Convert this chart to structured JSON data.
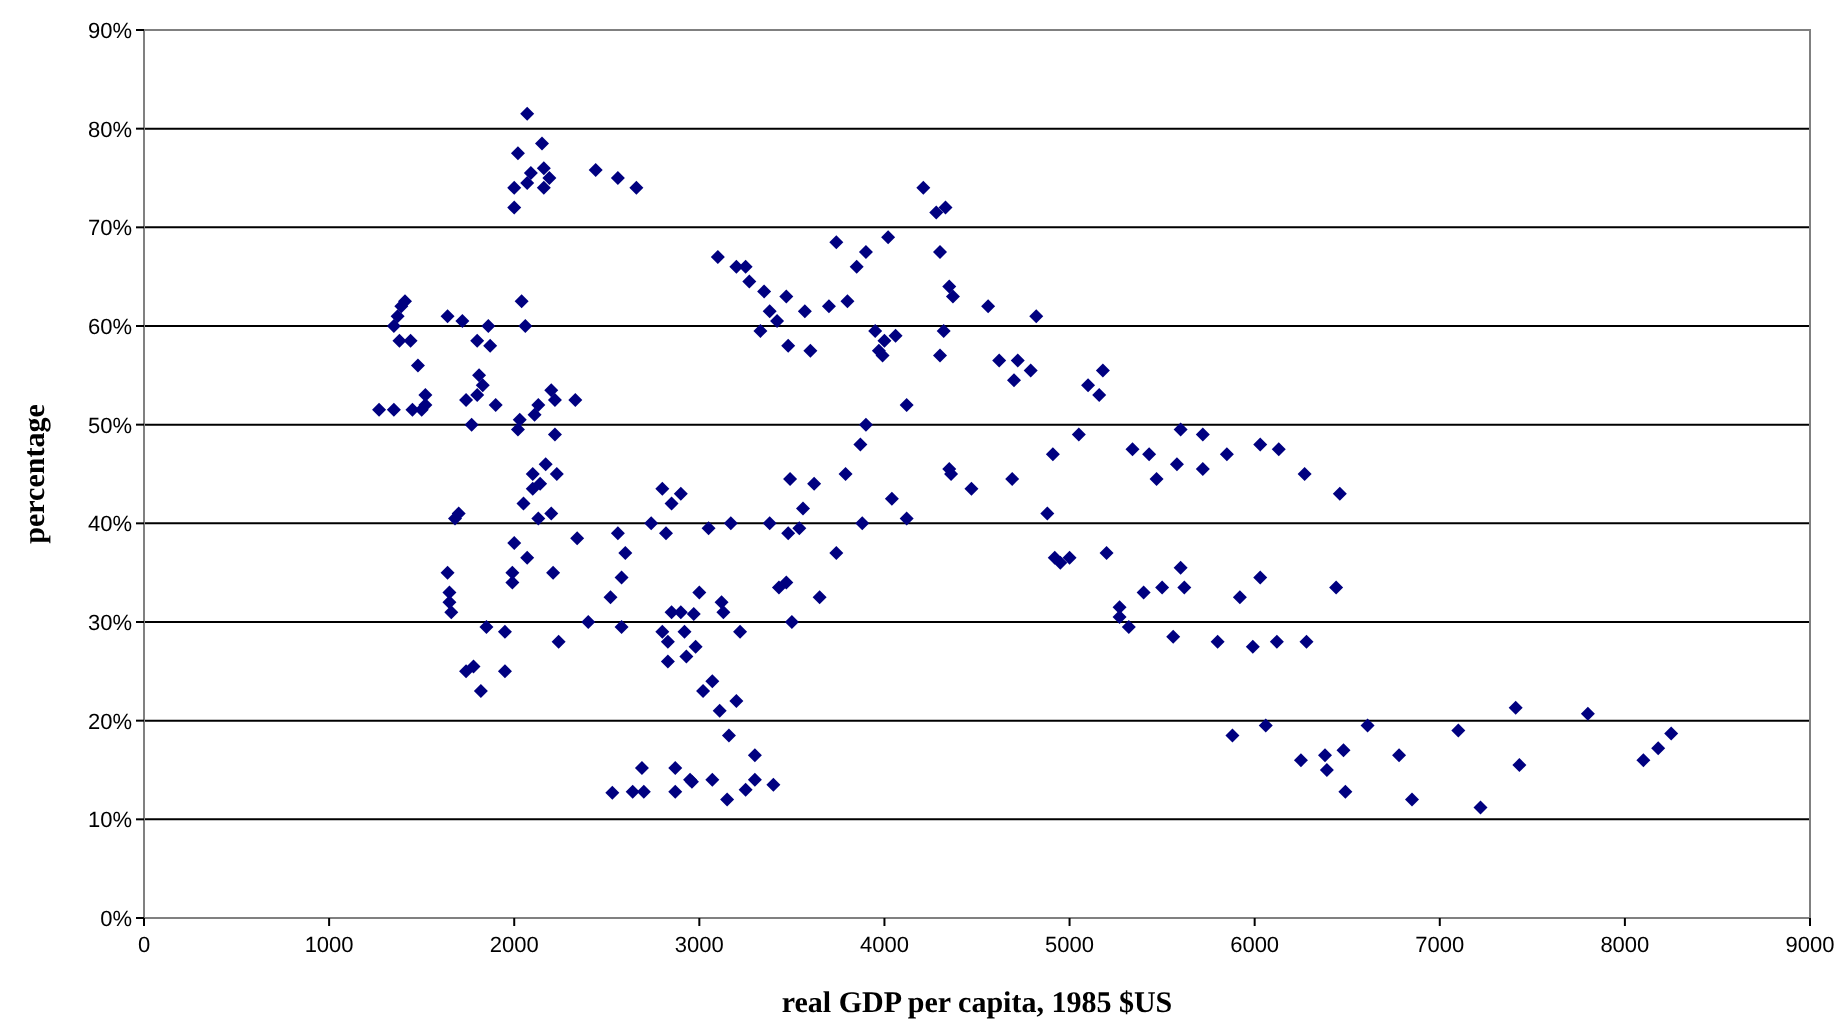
{
  "chart_data": {
    "type": "scatter",
    "xlabel": "real GDP per capita, 1985 $US",
    "ylabel": "percentage",
    "marker": "diamond",
    "grid": "y",
    "xlim": [
      0,
      9000
    ],
    "xticks": [
      0,
      1000,
      2000,
      3000,
      4000,
      5000,
      6000,
      7000,
      8000,
      9000
    ],
    "ylim": [
      0,
      90
    ],
    "yticks": [
      {
        "value": 0,
        "label": "0%"
      },
      {
        "value": 10,
        "label": "10%"
      },
      {
        "value": 20,
        "label": "20%"
      },
      {
        "value": 30,
        "label": "30%"
      },
      {
        "value": 40,
        "label": "40%"
      },
      {
        "value": 50,
        "label": "50%"
      },
      {
        "value": 60,
        "label": "60%"
      },
      {
        "value": 70,
        "label": "70%"
      },
      {
        "value": 80,
        "label": "80%"
      },
      {
        "value": 90,
        "label": "90%"
      }
    ],
    "series": [
      {
        "color": "#000080",
        "x": [
          1270,
          1350,
          1350,
          1370,
          1390,
          1410,
          1380,
          1440,
          1450,
          1500,
          1480,
          1520,
          1520,
          1640,
          1640,
          1650,
          1650,
          1660,
          1680,
          1700,
          1720,
          1740,
          1740,
          1780,
          1770,
          1800,
          1800,
          1810,
          1830,
          1820,
          1850,
          1860,
          1870,
          1900,
          1950,
          1950,
          1990,
          1990,
          2000,
          2000,
          2000,
          2020,
          2020,
          2030,
          2040,
          2050,
          2060,
          2070,
          2070,
          2090,
          2070,
          2100,
          2100,
          2110,
          2130,
          2130,
          2140,
          2150,
          2160,
          2160,
          2170,
          2190,
          2200,
          2210,
          2200,
          2220,
          2230,
          2240,
          2220,
          2330,
          2340,
          2400,
          2440,
          2520,
          2530,
          2560,
          2560,
          2580,
          2580,
          2600,
          2640,
          2660,
          2690,
          2700,
          2740,
          2800,
          2800,
          2820,
          2830,
          2830,
          2850,
          2850,
          2870,
          2870,
          2900,
          2900,
          2920,
          2930,
          2950,
          2960,
          2970,
          2980,
          3000,
          3020,
          3050,
          3070,
          3070,
          3100,
          3110,
          3120,
          3130,
          3150,
          3160,
          3170,
          3200,
          3200,
          3220,
          3250,
          3250,
          3270,
          3300,
          3300,
          3330,
          3350,
          3380,
          3380,
          3400,
          3420,
          3430,
          3470,
          3470,
          3480,
          3480,
          3490,
          3500,
          3540,
          3560,
          3570,
          3600,
          3620,
          3650,
          3700,
          3740,
          3740,
          3790,
          3800,
          3850,
          3870,
          3880,
          3900,
          3900,
          3950,
          3970,
          3990,
          4000,
          4020,
          4060,
          4040,
          4120,
          4120,
          4210,
          4280,
          4330,
          4300,
          4320,
          4300,
          4350,
          4360,
          4350,
          4370,
          4470,
          4560,
          4620,
          4700,
          4720,
          4690,
          4790,
          4820,
          4880,
          4920,
          4950,
          5000,
          4910,
          5050,
          5100,
          5160,
          5180,
          5200,
          5270,
          5270,
          5320,
          5340,
          5400,
          5430,
          5470,
          5500,
          5560,
          5580,
          5600,
          5600,
          5620,
          5720,
          5720,
          5800,
          5850,
          5880,
          5920,
          5990,
          6030,
          6030,
          6060,
          6130,
          6120,
          6250,
          6270,
          6380,
          6390,
          6440,
          6460,
          6480,
          6490,
          6610,
          6780,
          6850,
          7100,
          7220,
          7410,
          7430,
          7800,
          8100,
          8180,
          8250,
          6280
        ],
        "values": [
          51.5,
          51.5,
          60,
          61,
          62,
          62.5,
          58.5,
          58.5,
          51.5,
          51.5,
          56,
          53,
          52,
          61,
          35,
          33,
          32,
          31,
          40.5,
          41,
          60.5,
          52.5,
          25,
          25.5,
          50,
          53,
          58.5,
          55,
          54,
          23,
          29.5,
          60,
          58,
          52,
          25,
          29,
          35,
          34,
          38,
          72,
          74,
          77.5,
          49.5,
          50.5,
          62.5,
          42,
          60,
          81.5,
          74.5,
          75.5,
          36.5,
          45,
          43.5,
          51,
          52,
          40.5,
          44,
          78.5,
          74,
          76,
          46,
          75,
          41,
          35,
          53.5,
          49,
          45,
          28,
          52.5,
          52.5,
          38.5,
          30,
          75.8,
          32.5,
          12.7,
          39,
          75,
          34.5,
          29.5,
          37,
          12.8,
          74,
          15.2,
          12.8,
          40,
          29,
          43.5,
          39,
          26,
          28,
          42,
          31,
          15.2,
          12.8,
          31,
          43,
          29,
          26.5,
          14,
          13.8,
          30.8,
          27.5,
          33,
          23,
          39.5,
          24,
          14,
          67,
          21,
          32,
          31,
          12,
          18.5,
          40,
          66,
          22,
          29,
          13,
          66,
          64.5,
          14,
          16.5,
          59.5,
          63.5,
          40,
          61.5,
          13.5,
          60.5,
          33.5,
          63,
          34,
          58,
          39,
          44.5,
          30,
          39.5,
          41.5,
          61.5,
          57.5,
          44,
          32.5,
          62,
          37,
          68.5,
          45,
          62.5,
          66,
          48,
          40,
          50,
          67.5,
          59.5,
          57.5,
          57,
          58.5,
          69,
          59,
          42.5,
          52,
          40.5,
          74,
          71.5,
          72,
          67.5,
          59.5,
          57,
          45.5,
          45,
          64,
          63,
          43.5,
          62,
          56.5,
          54.5,
          56.5,
          44.5,
          55.5,
          61,
          41,
          36.5,
          36,
          36.5,
          47,
          49,
          54,
          53,
          55.5,
          37,
          30.5,
          31.5,
          29.5,
          47.5,
          33,
          47,
          44.5,
          33.5,
          28.5,
          46,
          49.5,
          35.5,
          33.5,
          49,
          45.5,
          28,
          47,
          18.5,
          32.5,
          27.5,
          48,
          34.5,
          19.5,
          47.5,
          28,
          16,
          45,
          16.5,
          15,
          33.5,
          43,
          17,
          12.8,
          19.5,
          16.5,
          12,
          19,
          11.2,
          21.3,
          15.5,
          20.7,
          16,
          17.2,
          18.7,
          28
        ]
      }
    ]
  }
}
